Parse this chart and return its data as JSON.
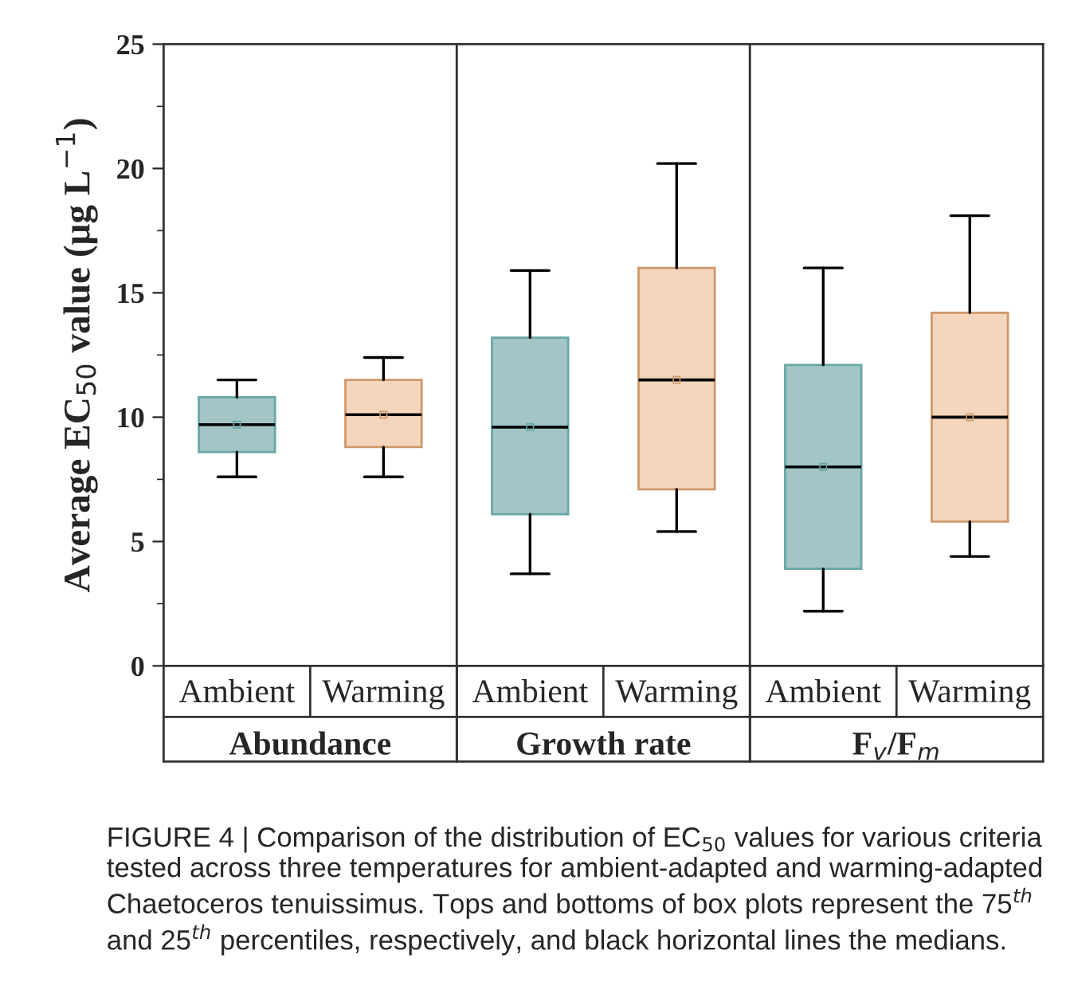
{
  "chart_data": [
    {
      "type": "box",
      "categories": [
        "Ambient",
        "Warming"
      ],
      "xlabel": "Abundance",
      "ylabel": "Average EC$_{50}$ value (μg L$^{−1}$)",
      "ylim": [
        0,
        25
      ],
      "yticks": [
        0,
        5,
        10,
        15,
        20,
        25
      ],
      "colors": [
        "#a3c5c5",
        "#f3d6bd"
      ],
      "boxes": [
        {
          "low": 7.6,
          "q1": 8.6,
          "median": 9.7,
          "q3": 10.8,
          "high": 11.5,
          "mean": 9.7
        },
        {
          "low": 7.6,
          "q1": 8.8,
          "median": 10.1,
          "q3": 11.5,
          "high": 12.4,
          "mean": 10.1
        }
      ]
    },
    {
      "type": "box",
      "categories": [
        "Ambient",
        "Warming"
      ],
      "xlabel": "Growth rate",
      "ylim": [
        0,
        25
      ],
      "yticks": [
        0,
        5,
        10,
        15,
        20,
        25
      ],
      "tick_labels": "x",
      "colors": [
        "#a3c5c5",
        "#f3d6bd"
      ],
      "boxes": [
        {
          "low": 3.7,
          "q1": 6.1,
          "median": 9.6,
          "q3": 13.2,
          "high": 15.9,
          "mean": 9.6
        },
        {
          "low": 5.4,
          "q1": 7.1,
          "median": 11.5,
          "q3": 16.0,
          "high": 20.2,
          "mean": 11.5
        }
      ]
    },
    {
      "type": "box",
      "categories": [
        "Ambient",
        "Warming"
      ],
      "xlabel": "F$_{v}$/F$_{m}$",
      "ylim": [
        0,
        25
      ],
      "yticks": [
        0,
        5,
        10,
        15,
        20,
        25
      ],
      "tick_labels": "x",
      "colors": [
        "#a3c5c5",
        "#f3d6bd"
      ],
      "boxes": [
        {
          "low": 2.2,
          "q1": 3.9,
          "median": 8.0,
          "q3": 12.1,
          "high": 16.0,
          "mean": 8.0
        },
        {
          "low": 4.4,
          "q1": 5.8,
          "median": 10.0,
          "q3": 14.2,
          "high": 18.1,
          "mean": 10.0
        }
      ],
      "annotations": [
        "FIGURE 4 | Comparison of the distribution of EC$_{50}$ values for various criteria tested across three temperatures for ambient-adapted and warming-adapted Chaetoceros tenuissimus. Tops and bottoms of box plots represent the 75$^{th}$ and 25$^{th}$ percentiles, respectively, and black horizontal lines the medians."
      ]
    }
  ]
}
